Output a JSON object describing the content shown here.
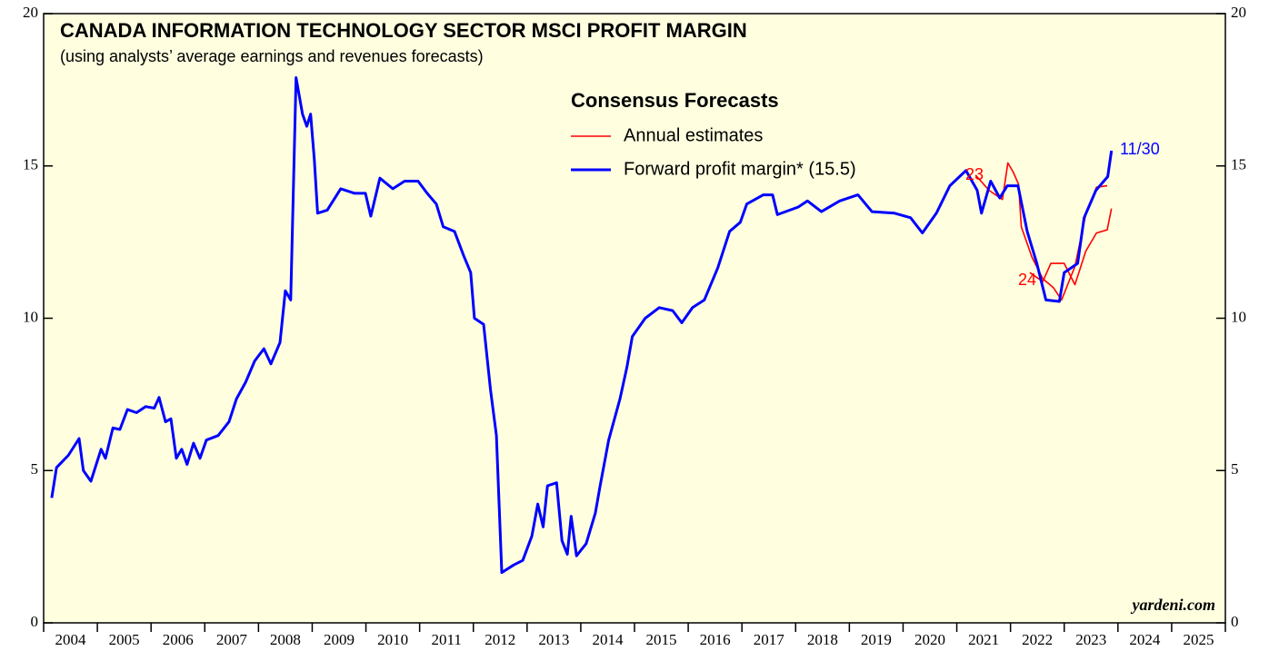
{
  "chart_data": {
    "type": "line",
    "title": "CANADA INFORMATION TECHNOLOGY SECTOR MSCI PROFIT MARGIN",
    "subtitle": "(using analysts’ average earnings and revenues forecasts)",
    "legend_title": "Consensus Forecasts",
    "source": "yardeni.com",
    "annotations": [
      "23",
      "24",
      "11/30"
    ],
    "xlim": [
      2004,
      2026
    ],
    "xticks": [
      2004,
      2005,
      2006,
      2007,
      2008,
      2009,
      2010,
      2011,
      2012,
      2013,
      2014,
      2015,
      2016,
      2017,
      2018,
      2019,
      2020,
      2021,
      2022,
      2023,
      2024,
      2025,
      2026
    ],
    "year_labels": [
      2004,
      2005,
      2006,
      2007,
      2008,
      2009,
      2010,
      2011,
      2012,
      2013,
      2014,
      2015,
      2016,
      2017,
      2018,
      2019,
      2020,
      2021,
      2022,
      2023,
      2024,
      2025
    ],
    "ylim": [
      0,
      20
    ],
    "yticks": [
      0,
      5,
      10,
      15,
      20
    ],
    "series": [
      {
        "name": "Annual estimates",
        "color": "#ff0000",
        "x": [
          2021.35,
          2021.6,
          2021.85,
          2021.95,
          2022.05,
          2022.15,
          2022.2,
          2022.4,
          2022.6,
          2022.8,
          2022.95,
          2023.2,
          2023.4,
          2023.6,
          2023.8,
          null,
          2022.36,
          2022.6,
          2022.75,
          2023.0,
          2023.2,
          2023.4,
          2023.6,
          2023.8,
          2023.88
        ],
        "values": [
          14.7,
          14.2,
          13.9,
          15.1,
          14.8,
          14.4,
          13.0,
          12.0,
          11.3,
          11.0,
          10.6,
          11.7,
          13.4,
          14.3,
          14.35,
          null,
          11.5,
          11.2,
          11.8,
          11.8,
          11.1,
          12.2,
          12.8,
          12.9,
          13.6
        ]
      },
      {
        "name": "Forward profit margin* (15.5)",
        "color": "#0000ff",
        "x": [
          2004.15,
          2004.24,
          2004.46,
          2004.66,
          2004.74,
          2004.88,
          2005.07,
          2005.15,
          2005.29,
          2005.42,
          2005.56,
          2005.73,
          2005.9,
          2006.06,
          2006.15,
          2006.27,
          2006.37,
          2006.47,
          2006.57,
          2006.67,
          2006.79,
          2006.91,
          2007.03,
          2007.25,
          2007.45,
          2007.59,
          2007.76,
          2007.93,
          2008.1,
          2008.23,
          2008.4,
          2008.5,
          2008.6,
          2008.7,
          2008.82,
          2008.9,
          2008.97,
          2009.04,
          2009.1,
          2009.28,
          2009.53,
          2009.79,
          2009.99,
          2010.09,
          2010.26,
          2010.5,
          2010.72,
          2010.97,
          2011.14,
          2011.31,
          2011.44,
          2011.65,
          2011.82,
          2011.95,
          2012.02,
          2012.19,
          2012.32,
          2012.43,
          2012.53,
          2012.75,
          2012.92,
          2013.09,
          2013.2,
          2013.3,
          2013.38,
          2013.55,
          2013.65,
          2013.75,
          2013.82,
          2013.92,
          2014.1,
          2014.27,
          2014.36,
          2014.52,
          2014.73,
          2014.86,
          2014.96,
          2015.2,
          2015.46,
          2015.71,
          2015.88,
          2016.08,
          2016.3,
          2016.55,
          2016.77,
          2016.97,
          2017.09,
          2017.4,
          2017.57,
          2017.66,
          2018.05,
          2018.22,
          2018.48,
          2018.82,
          2019.16,
          2019.42,
          2019.84,
          2020.14,
          2020.36,
          2020.62,
          2020.87,
          2021.17,
          2021.38,
          2021.46,
          2021.63,
          2021.8,
          2021.94,
          2022.14,
          2022.31,
          2022.49,
          2022.66,
          2022.91,
          2023.0,
          2023.25,
          2023.37,
          2023.59,
          2023.81,
          2023.88
        ],
        "values": [
          4.1,
          5.1,
          5.5,
          6.05,
          5.0,
          4.65,
          5.7,
          5.4,
          6.4,
          6.35,
          7.0,
          6.9,
          7.1,
          7.05,
          7.4,
          6.6,
          6.7,
          5.4,
          5.7,
          5.2,
          5.9,
          5.4,
          6.0,
          6.15,
          6.6,
          7.35,
          7.9,
          8.6,
          9.0,
          8.5,
          9.2,
          10.9,
          10.6,
          17.9,
          16.7,
          16.3,
          16.7,
          15.2,
          13.45,
          13.55,
          14.25,
          14.1,
          14.1,
          13.35,
          14.6,
          14.25,
          14.5,
          14.5,
          14.1,
          13.75,
          13.0,
          12.85,
          12.05,
          11.5,
          10.0,
          9.8,
          7.65,
          6.15,
          1.65,
          1.9,
          2.05,
          2.85,
          3.9,
          3.15,
          4.5,
          4.6,
          2.7,
          2.25,
          3.5,
          2.2,
          2.6,
          3.6,
          4.5,
          6.0,
          7.35,
          8.4,
          9.4,
          10.0,
          10.35,
          10.25,
          9.85,
          10.35,
          10.6,
          11.65,
          12.85,
          13.15,
          13.75,
          14.05,
          14.05,
          13.4,
          13.65,
          13.85,
          13.5,
          13.85,
          14.05,
          13.5,
          13.45,
          13.3,
          12.8,
          13.45,
          14.35,
          14.85,
          14.2,
          13.45,
          14.5,
          13.95,
          14.35,
          14.35,
          12.85,
          11.8,
          10.6,
          10.55,
          11.5,
          11.8,
          13.3,
          14.2,
          14.65,
          15.5
        ]
      }
    ]
  }
}
